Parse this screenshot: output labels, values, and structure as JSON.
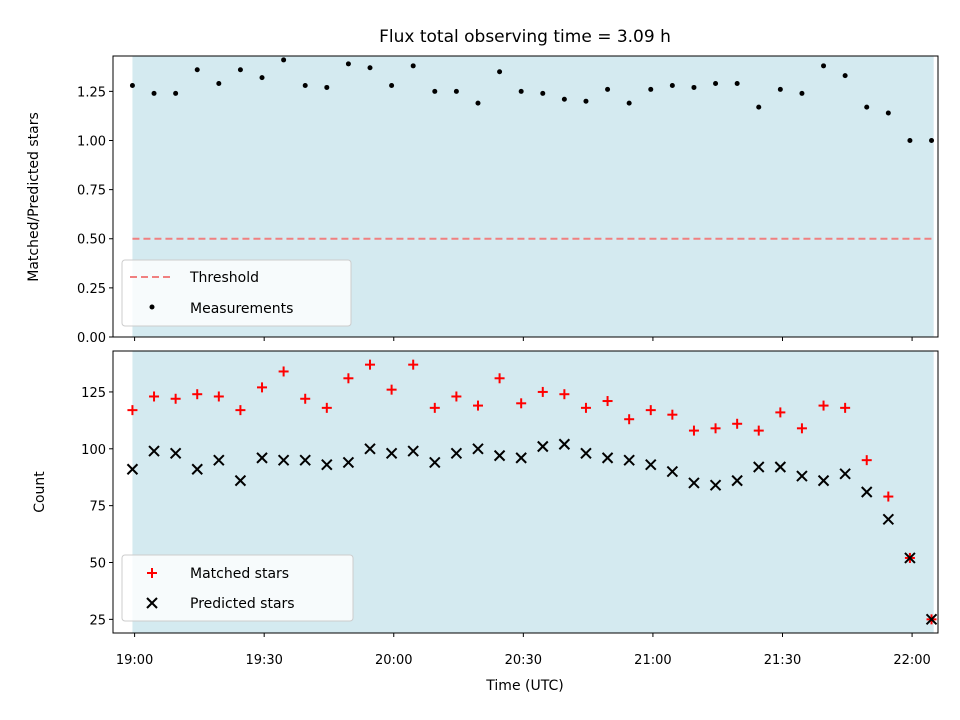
{
  "chart_data": {
    "title": "Flux total observing time = 3.09 h",
    "xlabel": "Time (UTC)",
    "x_ticks": [
      "19:00",
      "19:30",
      "20:00",
      "20:30",
      "21:00",
      "21:30",
      "22:00"
    ],
    "x_range": [
      "18:55",
      "22:06"
    ],
    "shaded_interval": [
      "18:59:30",
      "22:05:00"
    ],
    "shade_color": "#d4eaf0",
    "panels": [
      {
        "type": "scatter",
        "ylabel": "Matched/Predicted stars",
        "ylim": [
          0,
          1.43
        ],
        "yticks": [
          "0.00",
          "0.25",
          "0.50",
          "0.75",
          "1.00",
          "1.25"
        ],
        "legend_position": "lower-left",
        "lines": [
          {
            "name": "Threshold",
            "y": 0.5,
            "color": "#f08080",
            "style": "dashed"
          }
        ],
        "series": [
          {
            "name": "Measurements",
            "marker": "dot",
            "color": "#000000",
            "x": [
              "18:59:30",
              "19:04:30",
              "19:09:30",
              "19:14:30",
              "19:19:30",
              "19:24:30",
              "19:29:30",
              "19:34:30",
              "19:39:30",
              "19:44:30",
              "19:49:30",
              "19:54:30",
              "19:59:30",
              "20:04:30",
              "20:09:30",
              "20:14:30",
              "20:19:30",
              "20:24:30",
              "20:29:30",
              "20:34:30",
              "20:39:30",
              "20:44:30",
              "20:49:30",
              "20:54:30",
              "20:59:30",
              "21:04:30",
              "21:09:30",
              "21:14:30",
              "21:19:30",
              "21:24:30",
              "21:29:30",
              "21:34:30",
              "21:39:30",
              "21:44:30",
              "21:49:30",
              "21:54:30",
              "21:59:30",
              "22:04:30"
            ],
            "y": [
              1.28,
              1.24,
              1.24,
              1.36,
              1.29,
              1.36,
              1.32,
              1.41,
              1.28,
              1.27,
              1.39,
              1.37,
              1.28,
              1.38,
              1.25,
              1.25,
              1.19,
              1.35,
              1.25,
              1.24,
              1.21,
              1.2,
              1.26,
              1.19,
              1.26,
              1.28,
              1.27,
              1.29,
              1.29,
              1.17,
              1.26,
              1.24,
              1.38,
              1.33,
              1.17,
              1.14,
              1.0,
              1.0
            ]
          }
        ]
      },
      {
        "type": "scatter",
        "ylabel": "Count",
        "ylim": [
          19,
          143
        ],
        "yticks": [
          "25",
          "50",
          "75",
          "100",
          "125"
        ],
        "legend_position": "lower-left",
        "series": [
          {
            "name": "Matched stars",
            "marker": "plus",
            "color": "#ff0000",
            "x": [
              "18:59:30",
              "19:04:30",
              "19:09:30",
              "19:14:30",
              "19:19:30",
              "19:24:30",
              "19:29:30",
              "19:34:30",
              "19:39:30",
              "19:44:30",
              "19:49:30",
              "19:54:30",
              "19:59:30",
              "20:04:30",
              "20:09:30",
              "20:14:30",
              "20:19:30",
              "20:24:30",
              "20:29:30",
              "20:34:30",
              "20:39:30",
              "20:44:30",
              "20:49:30",
              "20:54:30",
              "20:59:30",
              "21:04:30",
              "21:09:30",
              "21:14:30",
              "21:19:30",
              "21:24:30",
              "21:29:30",
              "21:34:30",
              "21:39:30",
              "21:44:30",
              "21:49:30",
              "21:54:30",
              "21:59:30",
              "22:04:30"
            ],
            "y": [
              117,
              123,
              122,
              124,
              123,
              117,
              127,
              134,
              122,
              118,
              131,
              137,
              126,
              137,
              118,
              123,
              119,
              131,
              120,
              125,
              124,
              118,
              121,
              113,
              117,
              115,
              108,
              109,
              111,
              108,
              116,
              109,
              119,
              118,
              95,
              79,
              52,
              25
            ]
          },
          {
            "name": "Predicted stars",
            "marker": "x",
            "color": "#000000",
            "x": [
              "18:59:30",
              "19:04:30",
              "19:09:30",
              "19:14:30",
              "19:19:30",
              "19:24:30",
              "19:29:30",
              "19:34:30",
              "19:39:30",
              "19:44:30",
              "19:49:30",
              "19:54:30",
              "19:59:30",
              "20:04:30",
              "20:09:30",
              "20:14:30",
              "20:19:30",
              "20:24:30",
              "20:29:30",
              "20:34:30",
              "20:39:30",
              "20:44:30",
              "20:49:30",
              "20:54:30",
              "20:59:30",
              "21:04:30",
              "21:09:30",
              "21:14:30",
              "21:19:30",
              "21:24:30",
              "21:29:30",
              "21:34:30",
              "21:39:30",
              "21:44:30",
              "21:49:30",
              "21:54:30",
              "21:59:30",
              "22:04:30"
            ],
            "y": [
              91,
              99,
              98,
              91,
              95,
              86,
              96,
              95,
              95,
              93,
              94,
              100,
              98,
              99,
              94,
              98,
              100,
              97,
              96,
              101,
              102,
              98,
              96,
              95,
              93,
              90,
              85,
              84,
              86,
              92,
              92,
              88,
              86,
              89,
              81,
              69,
              52,
              25
            ]
          }
        ]
      }
    ]
  }
}
